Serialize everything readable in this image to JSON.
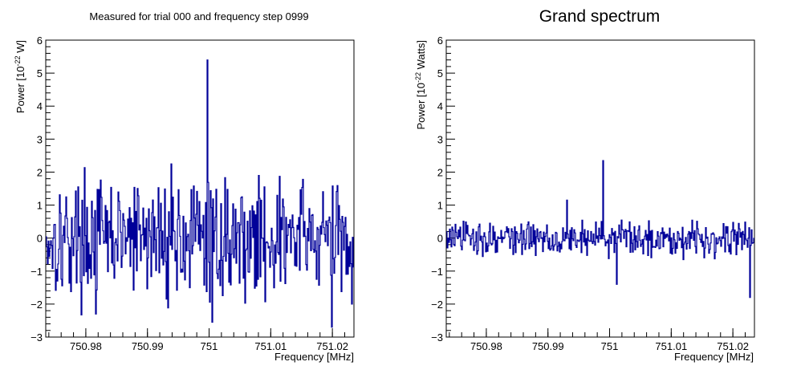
{
  "chart_data": [
    {
      "type": "histogram-line",
      "title": "Measured for trial 000 and frequency step 0999",
      "xlabel": "Frequency [MHz]",
      "ylabel_prefix": "Power [10",
      "ylabel_exp": "-22",
      "ylabel_suffix": " W]",
      "xlim": [
        750.9735,
        751.0235
      ],
      "ylim": [
        -3,
        6
      ],
      "x_ticks": [
        750.98,
        750.99,
        751.0,
        751.01,
        751.02
      ],
      "x_tick_labels": [
        "750.98",
        "750.99",
        "751",
        "751.01",
        "751.02"
      ],
      "y_ticks": [
        -3,
        -2,
        -1,
        0,
        1,
        2,
        3,
        4,
        5,
        6
      ],
      "y_tick_labels": [
        "−3",
        "−2",
        "−1",
        "0",
        "1",
        "2",
        "3",
        "4",
        "5",
        "6"
      ],
      "line_color": "#000099",
      "noise_amplitude": 1.5,
      "series": [
        {
          "x": [
            750.9816,
            750.9939,
            750.9997,
            751.0005,
            751.0199,
            751.0232
          ],
          "values": [
            -2.3,
            2.25,
            5.4,
            -2.55,
            -2.7,
            -2.0
          ]
        }
      ]
    },
    {
      "type": "histogram-line",
      "title": "Grand spectrum",
      "xlabel": "Frequency [MHz]",
      "ylabel_prefix": "Power [10",
      "ylabel_exp": "-22",
      "ylabel_suffix": " Watts]",
      "xlim": [
        750.9735,
        751.0235
      ],
      "ylim": [
        -3,
        6
      ],
      "x_ticks": [
        750.98,
        750.99,
        751.0,
        751.01,
        751.02
      ],
      "x_tick_labels": [
        "750.98",
        "750.99",
        "751",
        "751.01",
        "751.02"
      ],
      "y_ticks": [
        -3,
        -2,
        -1,
        0,
        1,
        2,
        3,
        4,
        5,
        6
      ],
      "y_tick_labels": [
        "−3",
        "−2",
        "−1",
        "0",
        "1",
        "2",
        "3",
        "4",
        "5",
        "6"
      ],
      "line_color": "#000099",
      "noise_amplitude": 0.45,
      "series": [
        {
          "x": [
            750.9931,
            750.999,
            751.0012,
            751.0228
          ],
          "values": [
            1.15,
            2.35,
            -1.4,
            -1.8
          ]
        }
      ]
    }
  ]
}
